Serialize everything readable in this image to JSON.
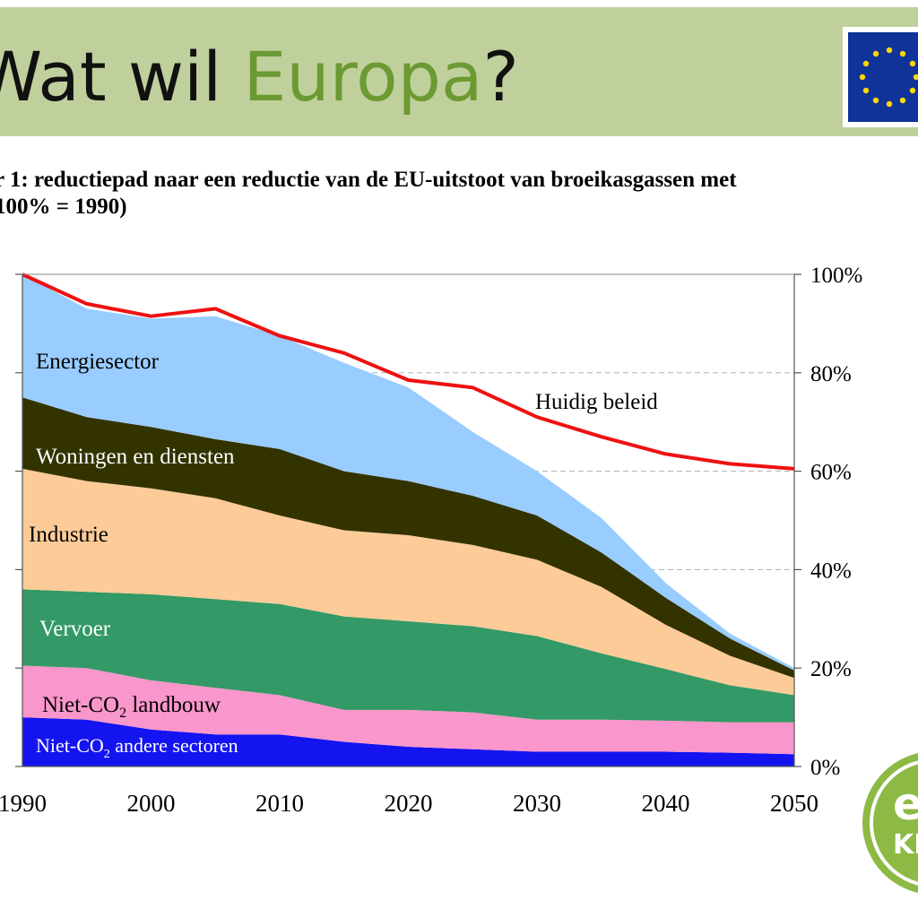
{
  "header": {
    "title_prefix": "Wat wil ",
    "title_accent": "Europa",
    "title_suffix": "?",
    "accent_color": "#6b9a32",
    "background_color": "#c0d09d"
  },
  "flag": {
    "icon": "eu-flag-icon",
    "background": "#10339a",
    "stars": "#ffd700"
  },
  "caption": {
    "line1": "r 1: reductiepad naar een reductie van de EU-uitstoot van broeikasgassen met",
    "line2": "100% = 1990)"
  },
  "logo": {
    "icon": "e-logo-icon",
    "text_top": "e",
    "text_bottom": "KI",
    "color": "#8dba44"
  },
  "chart_data": {
    "type": "area",
    "x": [
      1990,
      1995,
      2000,
      2005,
      2010,
      2015,
      2020,
      2025,
      2030,
      2035,
      2040,
      2045,
      2050
    ],
    "xlim": [
      1990,
      2050
    ],
    "xticks": [
      "1990",
      "2000",
      "2010",
      "2020",
      "2030",
      "2040",
      "2050"
    ],
    "ylim": [
      0,
      100
    ],
    "yticks_right": [
      "0%",
      "20%",
      "40%",
      "60%",
      "80%",
      "100%"
    ],
    "grid": "dashed horizontal lines at 20%, 40%, 60%, 80%",
    "series": [
      {
        "name": "Niet-CO2 andere sectoren",
        "label_main": "Niet-CO",
        "label_sub": "2",
        "label_rest": " andere sectoren",
        "color": "#1414f0",
        "label_color": "#ffffff",
        "values": [
          10,
          9.5,
          7.5,
          6.5,
          6.5,
          5,
          4,
          3.5,
          3,
          3,
          3,
          2.8,
          2.5
        ]
      },
      {
        "name": "Niet-CO2 landbouw",
        "label_main": "Niet-CO",
        "label_sub": "2",
        "label_rest": " landbouw",
        "color": "#f996cb",
        "label_color": "#000000",
        "values": [
          10.5,
          10.5,
          10,
          9.5,
          8,
          6.5,
          7.5,
          7.5,
          6.5,
          6.5,
          6.3,
          6.2,
          6.5
        ]
      },
      {
        "name": "Vervoer",
        "color": "#339966",
        "label_color": "#ffffff",
        "values": [
          15.5,
          15.5,
          17.5,
          18,
          18.5,
          19,
          18,
          17.5,
          17,
          13.5,
          10.5,
          7.5,
          5.5
        ]
      },
      {
        "name": "Industrie",
        "color": "#fdcb98",
        "label_color": "#000000",
        "values": [
          24.5,
          22.5,
          21.5,
          20.5,
          18,
          17.5,
          17.5,
          16.5,
          15.5,
          13.5,
          9,
          6,
          3.5
        ]
      },
      {
        "name": "Woningen en diensten",
        "color": "#333300",
        "label_color": "#ffffff",
        "values": [
          14.5,
          13,
          12.5,
          12,
          13.5,
          12,
          11,
          10,
          9,
          7,
          5.5,
          3.5,
          1.5
        ]
      },
      {
        "name": "Energiesector",
        "color": "#99ccff",
        "label_color": "#000000",
        "values": [
          25,
          22,
          22,
          25,
          23,
          22,
          19,
          13,
          9,
          7,
          3,
          1,
          0.5
        ]
      }
    ],
    "reference_line": {
      "name": "Huidig beleid",
      "color": "#ee1111",
      "values": [
        100,
        94,
        91.5,
        93,
        87.5,
        84,
        78.5,
        77,
        71,
        67,
        63.5,
        61.5,
        60.5
      ]
    }
  }
}
